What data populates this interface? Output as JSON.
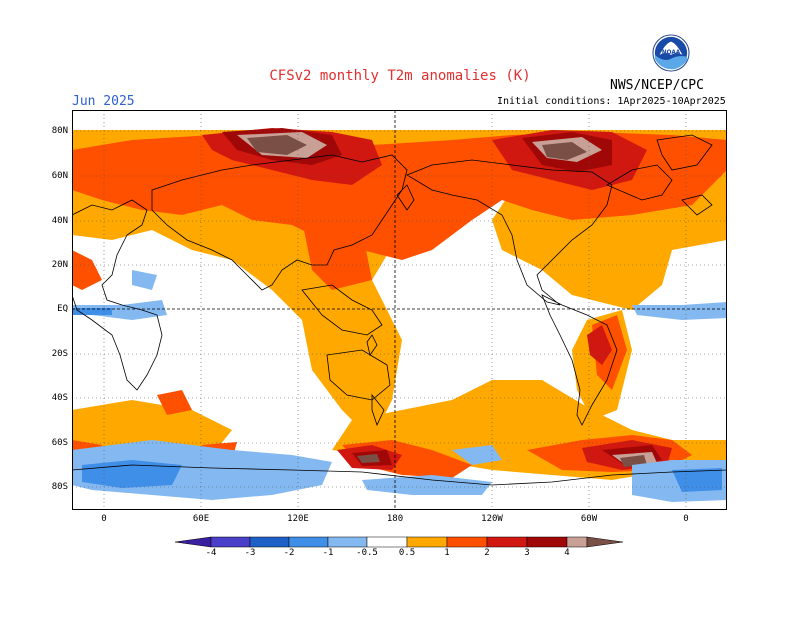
{
  "header": {
    "title": "CFSv2 monthly T2m anomalies (K)",
    "month": "Jun 2025",
    "agency": "NWS/NCEP/CPC",
    "initial_conditions": "Initial conditions: 1Apr2025-10Apr2025",
    "logo_text": "NOAA"
  },
  "map": {
    "lat_labels": [
      "80N",
      "60N",
      "40N",
      "20N",
      "EQ",
      "20S",
      "40S",
      "60S",
      "80S"
    ],
    "lon_labels": [
      "0",
      "60E",
      "120E",
      "180",
      "120W",
      "60W",
      "0"
    ]
  },
  "colorbar": {
    "labels": [
      "-4",
      "-3",
      "-2",
      "-1",
      "-0.5",
      "0.5",
      "1",
      "2",
      "3",
      "4"
    ],
    "colors": {
      "lt_neg4": "#3a1fa0",
      "neg4_neg3": "#4a3fc8",
      "neg3_neg2": "#1f60c8",
      "neg2_neg1": "#3f8ee8",
      "neg1_neg05": "#84b8f0",
      "neutral": "#ffffff",
      "p05_1": "#ffa800",
      "p1_2": "#ff5000",
      "p2_3": "#d01810",
      "p3_4": "#a00808",
      "p4_5": "#c8a096",
      "gt5": "#7a5046"
    }
  }
}
